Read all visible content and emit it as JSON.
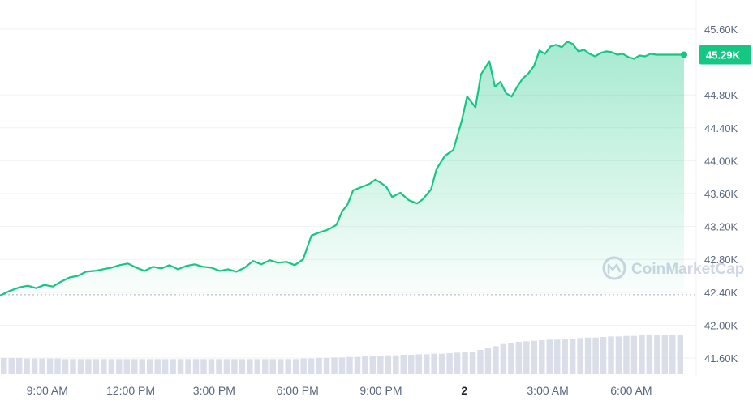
{
  "chart_data": {
    "type": "line",
    "watermark": "CoinMarketCap",
    "y_ticks": [
      "45.60K",
      "44.80K",
      "44.40K",
      "44.00K",
      "43.60K",
      "43.20K",
      "42.80K",
      "42.40K",
      "42.00K",
      "41.60K"
    ],
    "y_tick_values": [
      45600,
      44800,
      44400,
      44000,
      43600,
      43200,
      42800,
      42400,
      42000,
      41600
    ],
    "ylim": [
      41600,
      45600
    ],
    "x_ticks": [
      "9:00 AM",
      "12:00 PM",
      "3:00 PM",
      "6:00 PM",
      "9:00 PM",
      "2",
      "3:00 AM",
      "6:00 AM"
    ],
    "x_tick_hours": [
      9,
      12,
      15,
      18,
      21,
      24,
      27,
      30
    ],
    "xlim_hours": [
      7.3,
      31.9
    ],
    "current_price_label": "45.29K",
    "current_price": 45290,
    "reference_line": 42370,
    "grid": true,
    "colors": {
      "line": "#16c784",
      "area_top": "#16c784",
      "grid": "#eff2f5",
      "axis_text": "#58667e",
      "tag_bg": "#16c784",
      "volume": "#cfd6e4"
    },
    "series": [
      {
        "x": [
          7.3,
          7.6,
          8.0,
          8.3,
          8.6,
          8.9,
          9.2,
          9.5,
          9.8,
          10.1,
          10.4,
          10.7,
          11.0,
          11.3,
          11.6,
          11.9,
          12.2,
          12.5,
          12.8,
          13.1,
          13.4,
          13.7,
          14.0,
          14.3,
          14.6,
          14.9,
          15.2,
          15.5,
          15.8,
          16.1,
          16.4,
          16.7,
          17.0,
          17.3,
          17.6,
          17.9,
          18.2,
          18.5,
          18.8,
          19.0,
          19.2,
          19.4,
          19.6,
          19.8,
          20.0,
          20.3,
          20.6,
          20.8,
          21.0,
          21.2,
          21.4,
          21.7,
          22.0,
          22.3,
          22.5,
          22.8,
          23.0,
          23.3,
          23.6,
          23.9,
          24.1,
          24.4,
          24.6,
          24.9,
          25.1,
          25.3,
          25.5,
          25.7,
          25.9,
          26.1,
          26.3,
          26.5,
          26.7,
          26.9,
          27.1,
          27.3,
          27.5,
          27.7,
          27.9,
          28.1,
          28.3,
          28.5,
          28.7,
          28.9,
          29.1,
          29.3,
          29.5,
          29.7,
          29.9,
          30.1,
          30.3,
          30.5,
          30.7,
          30.9,
          31.1,
          31.3,
          31.5,
          31.7,
          31.9
        ],
        "values": [
          42360,
          42410,
          42460,
          42480,
          42450,
          42490,
          42470,
          42530,
          42580,
          42600,
          42650,
          42660,
          42680,
          42700,
          42730,
          42750,
          42700,
          42660,
          42710,
          42690,
          42730,
          42680,
          42720,
          42740,
          42710,
          42700,
          42660,
          42680,
          42650,
          42700,
          42780,
          42740,
          42790,
          42760,
          42770,
          42730,
          42800,
          43090,
          43130,
          43150,
          43180,
          43220,
          43380,
          43470,
          43640,
          43680,
          43720,
          43770,
          43730,
          43680,
          43560,
          43610,
          43520,
          43480,
          43530,
          43650,
          43900,
          44060,
          44130,
          44480,
          44780,
          44650,
          45050,
          45210,
          44900,
          44960,
          44820,
          44780,
          44900,
          45000,
          45060,
          45150,
          45340,
          45300,
          45390,
          45410,
          45380,
          45450,
          45420,
          45330,
          45350,
          45300,
          45270,
          45310,
          45330,
          45320,
          45290,
          45300,
          45260,
          45240,
          45280,
          45270,
          45300,
          45290,
          45290,
          45290,
          45290,
          45290,
          45290
        ]
      }
    ],
    "volume": {
      "x_start": 7.3,
      "x_end": 31.9,
      "values": [
        30,
        30,
        30,
        29,
        29,
        29,
        29,
        29,
        28,
        28,
        28,
        28,
        28,
        28,
        28,
        28,
        28,
        28,
        28,
        28,
        28,
        28,
        28,
        28,
        28,
        28,
        28,
        28,
        28,
        28,
        28,
        28,
        28,
        28,
        28,
        28,
        28,
        28,
        28,
        29,
        29,
        30,
        30,
        31,
        31,
        32,
        32,
        33,
        34,
        34,
        35,
        35,
        36,
        36,
        37,
        37,
        38,
        38,
        39,
        40,
        41,
        42,
        45,
        48,
        52,
        56,
        58,
        60,
        61,
        62,
        63,
        64,
        64,
        65,
        66,
        67,
        68,
        68,
        69,
        70,
        70,
        71,
        71,
        72,
        72,
        72,
        72,
        72,
        72
      ]
    }
  }
}
